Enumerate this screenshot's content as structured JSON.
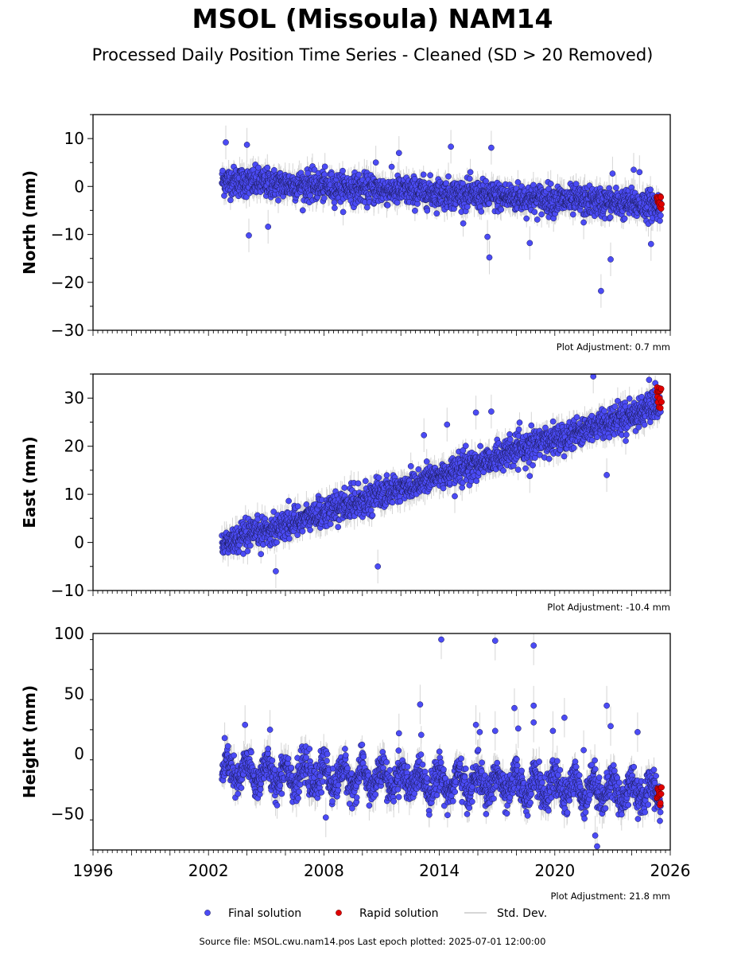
{
  "title": "MSOL (Missoula) NAM14",
  "subtitle": "Processed Daily Position Time Series - Cleaned (SD > 20 Removed)",
  "source_note": "Source file: MSOL.cwu.nam14.pos  Last epoch plotted: 2025-07-01 12:00:00",
  "colors": {
    "final": "#4b4bf5",
    "rapid": "#e00000",
    "std": "#c8c8c8",
    "edge": "#1a1a55"
  },
  "legend": {
    "final": "Final solution",
    "rapid": "Rapid solution",
    "std": "Std. Dev."
  },
  "chart_data": [
    {
      "type": "scatter",
      "ylabel": "North (mm)",
      "adjustment": "Plot Adjustment: 0.7 mm",
      "xlim": [
        1996,
        2026
      ],
      "ylim": [
        -30,
        15
      ],
      "yticks": [
        10,
        0,
        -10,
        -20,
        -30
      ],
      "yticklabels": [
        "10",
        "0",
        "−10",
        "−20",
        "−30"
      ],
      "trend": {
        "start": [
          2002.7,
          1.2
        ],
        "end": [
          2025.5,
          -4.0
        ],
        "scatter": 1.5
      },
      "outliers": [
        [
          2002.9,
          9.2
        ],
        [
          2004.0,
          8.7
        ],
        [
          2004.1,
          -10.2
        ],
        [
          2005.1,
          -8.4
        ],
        [
          2010.7,
          5.0
        ],
        [
          2011.9,
          7.0
        ],
        [
          2014.6,
          8.3
        ],
        [
          2016.5,
          -10.5
        ],
        [
          2016.6,
          -14.8
        ],
        [
          2016.7,
          8.1
        ],
        [
          2018.7,
          -11.8
        ],
        [
          2021.5,
          -7.5
        ],
        [
          2022.4,
          -21.8
        ],
        [
          2022.9,
          -15.2
        ],
        [
          2023.0,
          2.7
        ],
        [
          2024.1,
          3.5
        ],
        [
          2024.4,
          3.0
        ],
        [
          2025.0,
          -12.0
        ]
      ],
      "rapid": {
        "x_range": [
          2025.3,
          2025.55
        ],
        "y_range": [
          -4.8,
          -2.0
        ],
        "count": 14
      }
    },
    {
      "type": "scatter",
      "ylabel": "East (mm)",
      "adjustment": "Plot Adjustment: -10.4 mm",
      "xlim": [
        1996,
        2026
      ],
      "ylim": [
        -10,
        35
      ],
      "yticks": [
        30,
        20,
        10,
        0,
        -10
      ],
      "yticklabels": [
        "30",
        "20",
        "10",
        "0",
        "−10"
      ],
      "trend": {
        "start": [
          2002.7,
          -0.5
        ],
        "end": [
          2025.5,
          28.5
        ],
        "scatter": 1.5
      },
      "outliers": [
        [
          2005.5,
          -6.0
        ],
        [
          2010.8,
          -5.0
        ],
        [
          2013.2,
          22.3
        ],
        [
          2014.4,
          24.5
        ],
        [
          2014.8,
          9.6
        ],
        [
          2015.9,
          27.0
        ],
        [
          2016.7,
          27.2
        ],
        [
          2018.7,
          13.8
        ],
        [
          2022.0,
          34.5
        ],
        [
          2022.7,
          14.0
        ],
        [
          2024.9,
          33.8
        ]
      ],
      "rapid": {
        "x_range": [
          2025.3,
          2025.55
        ],
        "y_range": [
          27.0,
          33.0
        ],
        "count": 14
      }
    },
    {
      "type": "scatter",
      "ylabel": "Height (mm)",
      "adjustment": "Plot Adjustment: 21.8 mm",
      "xlim": [
        1996,
        2026
      ],
      "ylim": [
        -80,
        100
      ],
      "yticks": [
        100,
        50,
        0,
        -50
      ],
      "yticklabels": [
        "100",
        "50",
        "0",
        "−50"
      ],
      "xticks": [
        1996,
        2002,
        2008,
        2014,
        2020,
        2026
      ],
      "xticklabels": [
        "1996",
        "2002",
        "2008",
        "2014",
        "2020",
        "2026"
      ],
      "trend": {
        "start": [
          2002.7,
          -15.0
        ],
        "end": [
          2025.5,
          -32.0
        ],
        "scatter": 7.0,
        "seasonal": 9.0
      },
      "outliers": [
        [
          2003.9,
          24.0
        ],
        [
          2005.2,
          20.0
        ],
        [
          2008.1,
          -53.0
        ],
        [
          2011.9,
          17.0
        ],
        [
          2013.0,
          41.0
        ],
        [
          2014.1,
          95.0
        ],
        [
          2015.9,
          24.0
        ],
        [
          2016.1,
          18.0
        ],
        [
          2016.9,
          94.0
        ],
        [
          2016.9,
          19.0
        ],
        [
          2017.9,
          38.0
        ],
        [
          2018.1,
          21.0
        ],
        [
          2018.9,
          90.0
        ],
        [
          2018.9,
          40.0
        ],
        [
          2018.9,
          26.0
        ],
        [
          2019.9,
          19.0
        ],
        [
          2020.5,
          30.0
        ],
        [
          2021.5,
          3.0
        ],
        [
          2022.1,
          -68.0
        ],
        [
          2022.2,
          -77.0
        ],
        [
          2022.7,
          40.0
        ],
        [
          2022.9,
          23.0
        ],
        [
          2024.3,
          18.0
        ]
      ],
      "rapid": {
        "x_range": [
          2025.3,
          2025.55
        ],
        "y_range": [
          -43.0,
          -27.0
        ],
        "count": 14
      }
    }
  ]
}
